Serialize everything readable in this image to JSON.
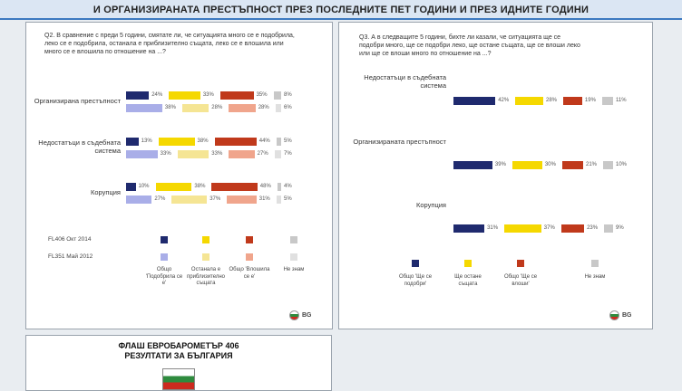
{
  "header": {
    "title": "И ОРГАНИЗИРАНАТА ПРЕСТЪПНОСТ ПРЕЗ ПОСЛЕДНИТЕ ПЕТ ГОДИНИ И ПРЕЗ ИДНИТЕ ГОДИНИ"
  },
  "chart_data": [
    {
      "type": "segmented_bar",
      "title": "Q2. В сравнение с преди 5 години, смятате ли, че ситуацията много се е подобрила, леко се е подобрила, останала е приблизително същата, леко се е влошила или много се е влошила по отношение на ...?",
      "categories": [
        "Организирана престъпност",
        "Недостатъци в съдебната система",
        "Корупция"
      ],
      "segments": [
        "Общо 'Подобрила се е'",
        "Останала е приблизително същата",
        "Общо 'Влошила се е'",
        "Не знам"
      ],
      "series": [
        {
          "name": "FL406 Окт 2014",
          "colors": [
            "#1f2a6e",
            "#f5d800",
            "#c0391b",
            "#c8c8c8"
          ],
          "values": [
            [
              24,
              33,
              35,
              8
            ],
            [
              13,
              38,
              44,
              5
            ],
            [
              10,
              38,
              48,
              4
            ]
          ],
          "value_labels": [
            [
              "24%",
              "33%",
              "35%",
              "8%"
            ],
            [
              "13%",
              "38%",
              "44%",
              "5%"
            ],
            [
              "10%",
              "38%",
              "48%",
              "4%"
            ]
          ]
        },
        {
          "name": "FL351 Май 2012",
          "colors": [
            "#a9aee8",
            "#f5e594",
            "#f0a58c",
            "#e0e0e0"
          ],
          "values": [
            [
              38,
              28,
              28,
              6
            ],
            [
              33,
              33,
              27,
              7
            ],
            [
              27,
              37,
              31,
              5
            ]
          ],
          "value_labels": [
            [
              "38%",
              "28%",
              "28%",
              "6%"
            ],
            [
              "33%",
              "33%",
              "27%",
              "7%"
            ],
            [
              "27%",
              "37%",
              "31%",
              "5%"
            ]
          ]
        }
      ],
      "badge": "BG"
    },
    {
      "type": "segmented_bar",
      "title": "Q3. А в следващите 5 години, бихте ли казали, че ситуацията ще се подобри много, ще се подобри леко, ще остане същата, ще се влоши леко или ще се влоши много по отношение на ...?",
      "categories": [
        "Недостатъци в съдебната система",
        "Организираната престъпност",
        "Корупция"
      ],
      "segments": [
        "Общо 'Ще се подобри'",
        "Ще остане същата",
        "Общо 'Ще се влоши'",
        "Не знам"
      ],
      "series": [
        {
          "colors": [
            "#1f2a6e",
            "#f5d800",
            "#c0391b",
            "#c8c8c8"
          ],
          "values": [
            [
              42,
              28,
              19,
              11
            ],
            [
              39,
              30,
              21,
              10
            ],
            [
              31,
              37,
              23,
              9
            ]
          ],
          "value_labels": [
            [
              "42%",
              "28%",
              "19%",
              "11%"
            ],
            [
              "39%",
              "30%",
              "21%",
              "10%"
            ],
            [
              "31%",
              "37%",
              "23%",
              "9%"
            ]
          ]
        }
      ],
      "badge": "BG"
    }
  ],
  "footer": {
    "lines": [
      "ФЛАШ ЕВРОБАРОМЕТЪР 406",
      "РЕЗУЛТАТИ ЗА БЪЛГАРИЯ"
    ]
  }
}
